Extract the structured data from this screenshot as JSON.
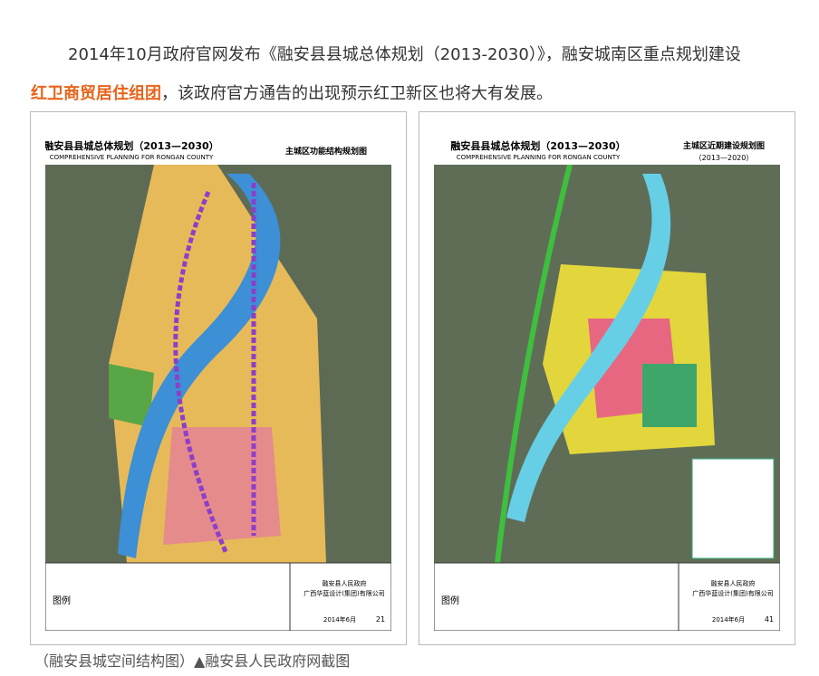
{
  "paragraph": {
    "line1": "2014年10月政府官网发布《融安县县城总体规划（2013-2030）》，融安城南区重点规划建设",
    "highlight": "红卫商贸居住组团",
    "line2_rest": "，该政府官方通告的出现预示红卫新区也将大有发展。"
  },
  "maps": [
    {
      "title": "融安县县城总体规划（2013—2030）",
      "subtitle": "COMPREHENSIVE PLANNING FOR RONGAN COUNTY",
      "map_name": "主城区功能结构规划图",
      "legend_heading": "图例",
      "org": "融安县人民政府",
      "designer": "广西华蓝设计(集团)有限公司",
      "date": "2014年6月",
      "page": "21"
    },
    {
      "title": "融安县县城总体规划（2013—2030）",
      "subtitle": "COMPREHENSIVE PLANNING FOR RONGAN COUNTY",
      "map_name": "主城区近期建设规划图",
      "period": "（2013—2020）",
      "legend_heading": "图例",
      "org": "融安县人民政府",
      "designer": "广西华蓝设计(集团)有限公司",
      "date": "2014年6月",
      "page": "41"
    }
  ],
  "caption": "（融安县城空间结构图）▲融安县人民政府网截图"
}
